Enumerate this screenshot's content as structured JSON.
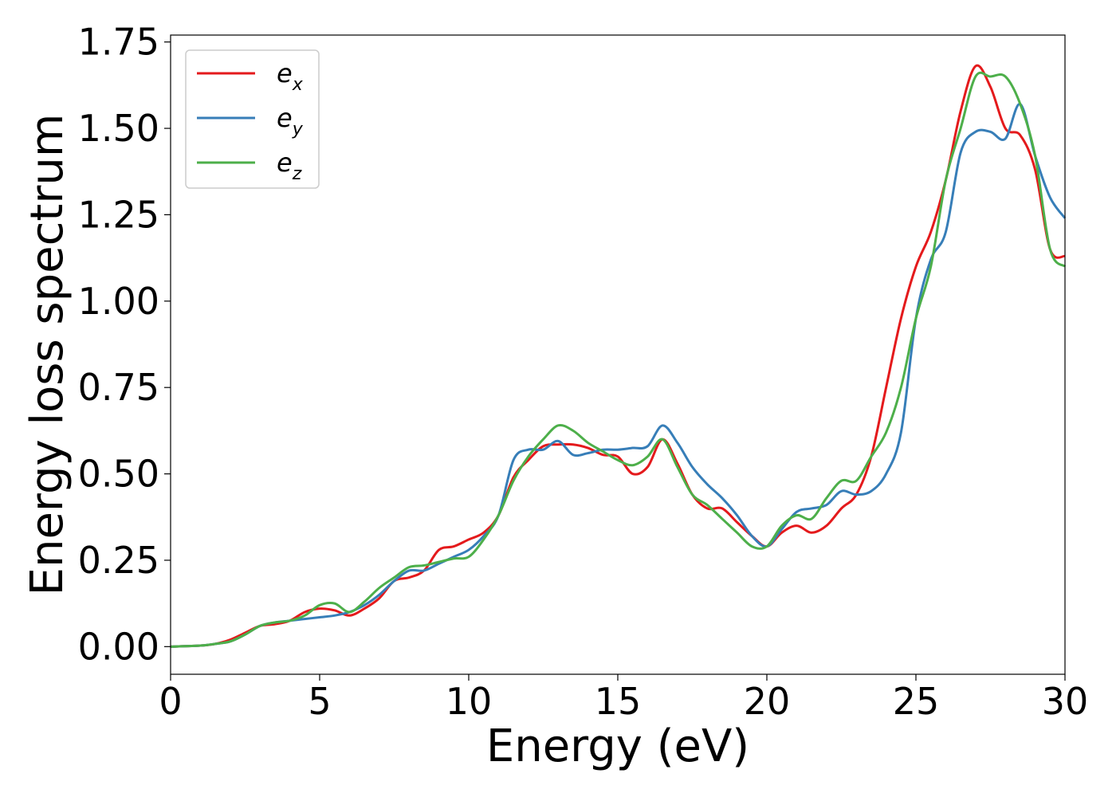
{
  "chart_data": {
    "type": "line",
    "xlabel": "Energy (eV)",
    "ylabel": "Energy loss spectrum",
    "xlim": [
      0,
      30
    ],
    "ylim": [
      -0.08,
      1.77
    ],
    "xticks": [
      0,
      5,
      10,
      15,
      20,
      25,
      30
    ],
    "xtick_labels": [
      "0",
      "5",
      "10",
      "15",
      "20",
      "25",
      "30"
    ],
    "yticks": [
      0,
      0.25,
      0.5,
      0.75,
      1.0,
      1.25,
      1.5,
      1.75
    ],
    "ytick_labels": [
      "0.00",
      "0.25",
      "0.50",
      "0.75",
      "1.00",
      "1.25",
      "1.50",
      "1.75"
    ],
    "grid": false,
    "legend_position": "top-left",
    "series": [
      {
        "name": "e_x",
        "legend_main": "e",
        "legend_sub": "x",
        "color": "#e41a1c",
        "x": [
          0,
          1,
          1.5,
          2,
          2.5,
          3,
          3.5,
          4,
          4.5,
          5,
          5.5,
          6,
          6.5,
          7,
          7.5,
          8,
          8.5,
          9,
          9.5,
          10,
          10.5,
          11,
          11.5,
          12,
          12.5,
          13,
          13.5,
          14,
          14.5,
          15,
          15.5,
          16,
          16.5,
          17,
          17.5,
          18,
          18.5,
          19,
          19.5,
          20,
          20.5,
          21,
          21.5,
          22,
          22.5,
          23,
          23.5,
          24,
          24.5,
          25,
          25.5,
          26,
          26.5,
          27,
          27.5,
          28,
          28.5,
          29,
          29.5,
          30
        ],
        "y": [
          0,
          0.003,
          0.008,
          0.02,
          0.04,
          0.06,
          0.065,
          0.075,
          0.1,
          0.11,
          0.105,
          0.09,
          0.11,
          0.14,
          0.19,
          0.2,
          0.22,
          0.28,
          0.29,
          0.31,
          0.33,
          0.38,
          0.49,
          0.54,
          0.58,
          0.585,
          0.585,
          0.575,
          0.555,
          0.55,
          0.5,
          0.52,
          0.6,
          0.53,
          0.44,
          0.4,
          0.4,
          0.36,
          0.32,
          0.29,
          0.33,
          0.35,
          0.33,
          0.35,
          0.4,
          0.44,
          0.55,
          0.75,
          0.95,
          1.1,
          1.2,
          1.35,
          1.55,
          1.68,
          1.62,
          1.5,
          1.48,
          1.38,
          1.15,
          1.13
        ]
      },
      {
        "name": "e_y",
        "legend_main": "e",
        "legend_sub": "y",
        "color": "#377eb8",
        "x": [
          0,
          1,
          1.5,
          2,
          2.5,
          3,
          3.5,
          4,
          4.5,
          5,
          5.5,
          6,
          6.5,
          7,
          7.5,
          8,
          8.5,
          9,
          9.5,
          10,
          10.5,
          11,
          11.5,
          12,
          12.5,
          13,
          13.5,
          14,
          14.5,
          15,
          15.5,
          16,
          16.5,
          17,
          17.5,
          18,
          18.5,
          19,
          19.5,
          20,
          20.5,
          21,
          21.5,
          22,
          22.5,
          23,
          23.5,
          24,
          24.5,
          25,
          25.5,
          26,
          26.5,
          27,
          27.5,
          28,
          28.5,
          29,
          29.5,
          30
        ],
        "y": [
          0,
          0.003,
          0.008,
          0.015,
          0.035,
          0.06,
          0.07,
          0.075,
          0.08,
          0.085,
          0.09,
          0.1,
          0.12,
          0.15,
          0.19,
          0.22,
          0.22,
          0.24,
          0.26,
          0.28,
          0.32,
          0.38,
          0.54,
          0.57,
          0.57,
          0.595,
          0.555,
          0.56,
          0.57,
          0.57,
          0.575,
          0.58,
          0.64,
          0.59,
          0.52,
          0.47,
          0.43,
          0.38,
          0.32,
          0.29,
          0.34,
          0.39,
          0.4,
          0.41,
          0.45,
          0.44,
          0.45,
          0.5,
          0.62,
          0.95,
          1.12,
          1.2,
          1.43,
          1.49,
          1.49,
          1.47,
          1.57,
          1.42,
          1.3,
          1.24
        ]
      },
      {
        "name": "e_z",
        "legend_main": "e",
        "legend_sub": "z",
        "color": "#4daf4a",
        "x": [
          0,
          1,
          1.5,
          2,
          2.5,
          3,
          3.5,
          4,
          4.5,
          5,
          5.5,
          6,
          6.5,
          7,
          7.5,
          8,
          8.5,
          9,
          9.5,
          10,
          10.5,
          11,
          11.5,
          12,
          12.5,
          13,
          13.5,
          14,
          14.5,
          15,
          15.5,
          16,
          16.5,
          17,
          17.5,
          18,
          18.5,
          19,
          19.5,
          20,
          20.5,
          21,
          21.5,
          22,
          22.5,
          23,
          23.5,
          24,
          24.5,
          25,
          25.5,
          26,
          26.5,
          27,
          27.5,
          28,
          28.5,
          29,
          29.5,
          30
        ],
        "y": [
          0,
          0.003,
          0.008,
          0.015,
          0.035,
          0.06,
          0.07,
          0.075,
          0.09,
          0.12,
          0.125,
          0.1,
          0.13,
          0.17,
          0.2,
          0.23,
          0.235,
          0.245,
          0.255,
          0.26,
          0.31,
          0.38,
          0.48,
          0.55,
          0.6,
          0.64,
          0.625,
          0.59,
          0.565,
          0.54,
          0.525,
          0.55,
          0.6,
          0.52,
          0.44,
          0.41,
          0.37,
          0.33,
          0.29,
          0.29,
          0.35,
          0.38,
          0.37,
          0.43,
          0.48,
          0.48,
          0.55,
          0.62,
          0.75,
          0.95,
          1.1,
          1.35,
          1.5,
          1.65,
          1.65,
          1.65,
          1.57,
          1.42,
          1.15,
          1.1
        ]
      }
    ]
  }
}
